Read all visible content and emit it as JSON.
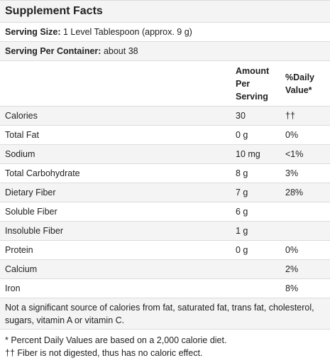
{
  "title": "Supplement Facts",
  "serving_size": {
    "label": "Serving Size:",
    "value": "1 Level Tablespoon (approx. 9 g)"
  },
  "servings_per_container": {
    "label": "Serving Per Container:",
    "value": "about 38"
  },
  "table": {
    "header": [
      "Amount Per Serving",
      "%Daily Value*"
    ],
    "rows": [
      {
        "name": "Calories",
        "amount": "30",
        "dv": "††"
      },
      {
        "name": "Total Fat",
        "amount": "0 g",
        "dv": "0%"
      },
      {
        "name": "Sodium",
        "amount": "10 mg",
        "dv": "<1%"
      },
      {
        "name": "Total Carbohydrate",
        "amount": "8 g",
        "dv": "3%"
      },
      {
        "name": "Dietary Fiber",
        "amount": "7 g",
        "dv": "28%"
      },
      {
        "name": "Soluble Fiber",
        "amount": "6 g"
      },
      {
        "name": "Insoluble Fiber",
        "amount": "1 g"
      },
      {
        "name": "Protein",
        "amount": "0 g",
        "dv": "0%"
      },
      {
        "name": "Calcium",
        "dv": "2%"
      },
      {
        "name": "Iron",
        "dv": "8%"
      }
    ]
  },
  "note": "Not a significant source of calories from fat, saturated fat, trans fat, cholesterol, sugars, vitamin A or vitamin C.",
  "footnotes": [
    "* Percent Daily Values are based on a 2,000 calorie diet.",
    "†† Fiber is not digested, thus has no caloric effect."
  ]
}
